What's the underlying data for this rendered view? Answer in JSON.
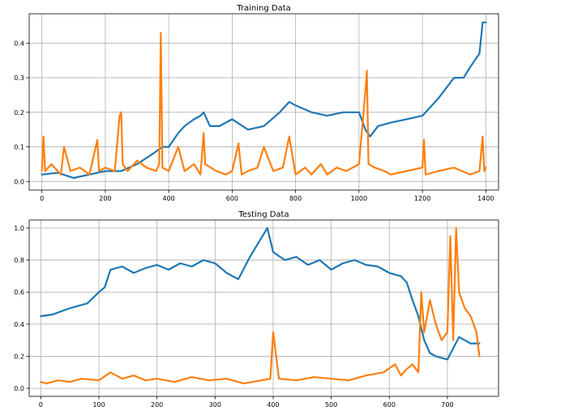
{
  "chart_data": [
    {
      "type": "line",
      "title": "Training Data",
      "xlabel": "",
      "ylabel": "",
      "xlim": [
        -40,
        1440
      ],
      "ylim": [
        -0.025,
        0.485
      ],
      "xticks": [
        0,
        200,
        400,
        600,
        800,
        1000,
        1200,
        1400
      ],
      "yticks": [
        0.0,
        0.1,
        0.2,
        0.3,
        0.4
      ],
      "ytick_labels": [
        "0.0",
        "0.1",
        "0.2",
        "0.3",
        "0.4"
      ],
      "grid": true,
      "series": [
        {
          "color": "#1f77b4",
          "x": [
            0,
            50,
            100,
            150,
            200,
            250,
            300,
            350,
            380,
            400,
            430,
            450,
            480,
            500,
            510,
            530,
            560,
            600,
            650,
            700,
            750,
            780,
            800,
            850,
            900,
            950,
            1000,
            1020,
            1035,
            1060,
            1100,
            1150,
            1200,
            1250,
            1300,
            1330,
            1350,
            1380,
            1390,
            1400
          ],
          "y": [
            0.02,
            0.025,
            0.01,
            0.02,
            0.03,
            0.03,
            0.05,
            0.08,
            0.1,
            0.1,
            0.14,
            0.16,
            0.18,
            0.19,
            0.2,
            0.16,
            0.16,
            0.18,
            0.15,
            0.16,
            0.2,
            0.23,
            0.22,
            0.2,
            0.19,
            0.2,
            0.2,
            0.15,
            0.13,
            0.16,
            0.17,
            0.18,
            0.19,
            0.24,
            0.3,
            0.3,
            0.33,
            0.37,
            0.46,
            0.46
          ]
        },
        {
          "color": "#ff7f0e",
          "x": [
            0,
            5,
            10,
            30,
            60,
            70,
            90,
            120,
            150,
            175,
            180,
            200,
            230,
            245,
            250,
            255,
            270,
            300,
            330,
            360,
            370,
            375,
            380,
            400,
            430,
            450,
            480,
            500,
            510,
            515,
            550,
            580,
            600,
            620,
            630,
            650,
            680,
            700,
            730,
            760,
            780,
            800,
            830,
            850,
            880,
            900,
            930,
            960,
            1000,
            1020,
            1025,
            1030,
            1050,
            1080,
            1100,
            1150,
            1200,
            1205,
            1210,
            1250,
            1300,
            1350,
            1380,
            1390,
            1395,
            1400
          ],
          "y": [
            0.03,
            0.13,
            0.03,
            0.05,
            0.02,
            0.1,
            0.03,
            0.04,
            0.02,
            0.12,
            0.03,
            0.04,
            0.03,
            0.19,
            0.2,
            0.05,
            0.03,
            0.06,
            0.04,
            0.03,
            0.05,
            0.43,
            0.04,
            0.03,
            0.1,
            0.03,
            0.05,
            0.02,
            0.14,
            0.05,
            0.03,
            0.02,
            0.03,
            0.11,
            0.02,
            0.03,
            0.04,
            0.1,
            0.03,
            0.04,
            0.13,
            0.02,
            0.04,
            0.02,
            0.05,
            0.02,
            0.04,
            0.03,
            0.05,
            0.26,
            0.32,
            0.05,
            0.04,
            0.03,
            0.02,
            0.03,
            0.04,
            0.12,
            0.02,
            0.03,
            0.04,
            0.02,
            0.03,
            0.13,
            0.03,
            0.04
          ]
        }
      ]
    },
    {
      "type": "line",
      "title": "Testing Data",
      "xlabel": "",
      "ylabel": "",
      "xlim": [
        -20,
        788
      ],
      "ylim": [
        -0.05,
        1.05
      ],
      "xticks": [
        0,
        100,
        200,
        300,
        400,
        500,
        600,
        700
      ],
      "yticks": [
        0.0,
        0.2,
        0.4,
        0.6,
        0.8,
        1.0
      ],
      "ytick_labels": [
        "0.0",
        "0.2",
        "0.4",
        "0.6",
        "0.8",
        "1.0"
      ],
      "grid": true,
      "series": [
        {
          "color": "#1f77b4",
          "x": [
            0,
            20,
            50,
            80,
            100,
            110,
            120,
            140,
            160,
            180,
            200,
            220,
            240,
            260,
            280,
            300,
            320,
            340,
            360,
            380,
            390,
            400,
            420,
            440,
            460,
            480,
            500,
            520,
            540,
            560,
            580,
            600,
            620,
            630,
            640,
            650,
            660,
            670,
            680,
            700,
            720,
            740,
            755
          ],
          "y": [
            0.45,
            0.46,
            0.5,
            0.53,
            0.6,
            0.63,
            0.74,
            0.76,
            0.72,
            0.75,
            0.77,
            0.74,
            0.78,
            0.76,
            0.8,
            0.78,
            0.72,
            0.68,
            0.82,
            0.94,
            1.0,
            0.85,
            0.8,
            0.82,
            0.77,
            0.8,
            0.74,
            0.78,
            0.8,
            0.77,
            0.76,
            0.72,
            0.7,
            0.66,
            0.55,
            0.45,
            0.3,
            0.22,
            0.2,
            0.18,
            0.32,
            0.28,
            0.28
          ]
        },
        {
          "color": "#ff7f0e",
          "x": [
            0,
            10,
            30,
            50,
            70,
            100,
            120,
            140,
            160,
            180,
            200,
            230,
            260,
            290,
            320,
            340,
            350,
            395,
            400,
            410,
            440,
            470,
            500,
            530,
            560,
            590,
            610,
            620,
            630,
            640,
            650,
            655,
            660,
            670,
            680,
            690,
            700,
            705,
            710,
            715,
            720,
            730,
            740,
            750,
            755
          ],
          "y": [
            0.04,
            0.03,
            0.05,
            0.04,
            0.06,
            0.05,
            0.1,
            0.06,
            0.08,
            0.05,
            0.06,
            0.04,
            0.07,
            0.05,
            0.06,
            0.04,
            0.03,
            0.06,
            0.35,
            0.06,
            0.05,
            0.07,
            0.06,
            0.05,
            0.08,
            0.1,
            0.15,
            0.08,
            0.12,
            0.15,
            0.1,
            0.6,
            0.35,
            0.55,
            0.4,
            0.3,
            0.35,
            0.95,
            0.3,
            1.0,
            0.6,
            0.5,
            0.45,
            0.35,
            0.2
          ]
        }
      ]
    }
  ]
}
